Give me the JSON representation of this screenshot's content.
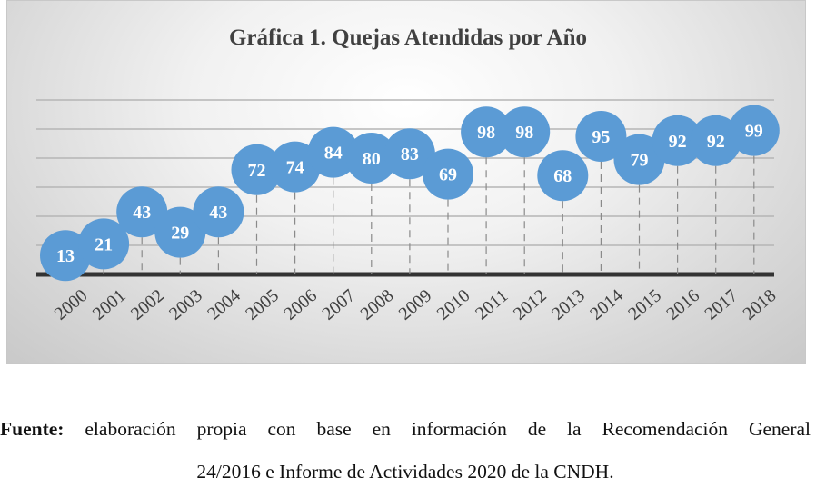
{
  "chart_data": {
    "type": "scatter",
    "title": "Gráfica 1. Quejas Atendidas por Año",
    "xlabel": "",
    "ylabel": "",
    "categories": [
      "2000",
      "2001",
      "2002",
      "2003",
      "2004",
      "2005",
      "2006",
      "2007",
      "2008",
      "2009",
      "2010",
      "2011",
      "2012",
      "2013",
      "2014",
      "2015",
      "2016",
      "2017",
      "2018"
    ],
    "values": [
      13,
      21,
      43,
      29,
      43,
      72,
      74,
      84,
      80,
      83,
      69,
      98,
      98,
      68,
      95,
      79,
      92,
      92,
      99
    ],
    "ylim": [
      0,
      120
    ],
    "grid": true,
    "legend": "none",
    "marker_color": "#5b9bd5",
    "label_color": "#ffffff"
  },
  "source": {
    "bold_label": "Fuente:",
    "line1": "elaboración propia con base en información de la Recomendación General",
    "line2": "24/2016 e Informe de Actividades 2020 de la CNDH."
  }
}
